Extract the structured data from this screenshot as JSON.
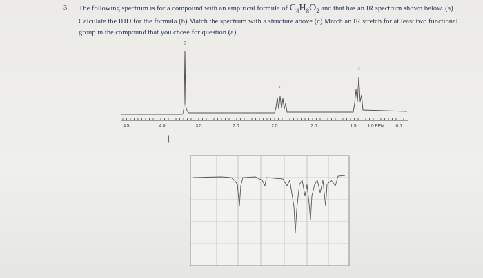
{
  "question": {
    "number": "3.",
    "text_before": "The following spectrum is for a compound with an empirical formula of ",
    "formula": [
      "C",
      "4",
      "H",
      "8",
      "O",
      "2"
    ],
    "text_after": " and that has an IR spectrum shown below. (a) Calculate the IHD for the formula (b) Match the spectrum with a structure above (c) Match an IR stretch for at least two functional group in the compound that you chose for question (a)."
  },
  "nmr": {
    "axis_labels": [
      "4.5",
      "4.0",
      "3.5",
      "3.0",
      "2.5",
      "2.0",
      "1.5",
      "1.0 PPM",
      "0.5"
    ],
    "integrations": [
      "3",
      "2",
      "3"
    ]
  }
}
